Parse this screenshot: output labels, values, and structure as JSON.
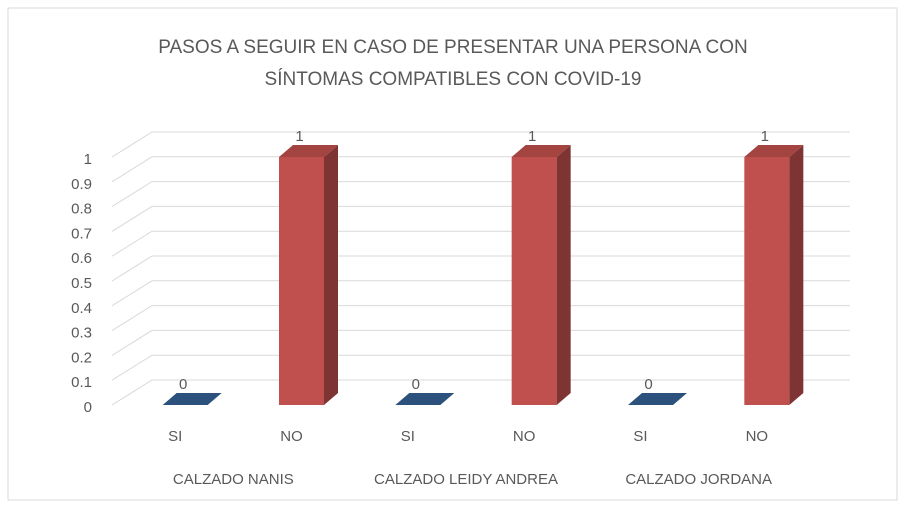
{
  "chart_data": {
    "type": "bar3d",
    "title": [
      "PASOS A SEGUIR EN CASO DE PRESENTAR UNA PERSONA CON",
      "SÍNTOMAS COMPATIBLES CON COVID-19"
    ],
    "categories": [
      "SI",
      "NO",
      "SI",
      "NO",
      "SI",
      "NO"
    ],
    "groups": [
      "CALZADO NANIS",
      "CALZADO LEIDY ANDREA",
      "CALZADO JORDANA"
    ],
    "values": [
      0,
      1,
      0,
      1,
      0,
      1
    ],
    "colors": [
      "#335f92",
      "#c0504d",
      "#335f92",
      "#c0504d",
      "#335f92",
      "#c0504d"
    ],
    "ylim": [
      0,
      1
    ],
    "yticks": [
      0,
      0.1,
      0.2,
      0.3,
      0.4,
      0.5,
      0.6,
      0.7,
      0.8,
      0.9,
      1
    ],
    "grid": true
  }
}
